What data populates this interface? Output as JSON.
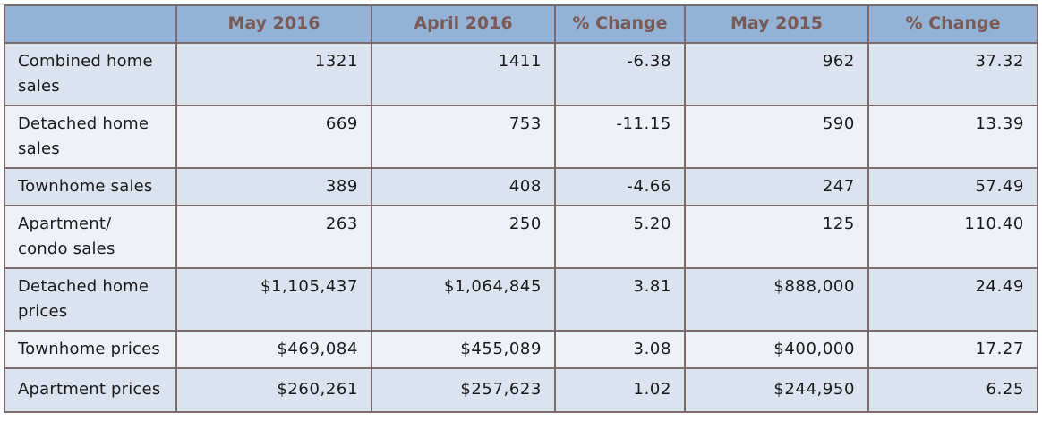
{
  "table": {
    "headers": [
      "",
      "May 2016",
      "April 2016",
      "% Change",
      "May 2015",
      "% Change"
    ],
    "rows": [
      {
        "label": "Combined home sales",
        "values": [
          "1321",
          "1411",
          "-6.38",
          "962",
          "37.32"
        ]
      },
      {
        "label": "Detached home sales",
        "values": [
          "669",
          "753",
          "-11.15",
          "590",
          "13.39"
        ]
      },
      {
        "label": "Townhome sales",
        "values": [
          "389",
          "408",
          "-4.66",
          "247",
          "57.49"
        ]
      },
      {
        "label": "Apartment/ condo sales",
        "values": [
          "263",
          "250",
          "5.20",
          "125",
          "110.40"
        ]
      },
      {
        "label": "Detached home prices",
        "values": [
          "$1,105,437",
          "$1,064,845",
          "3.81",
          "$888,000",
          "24.49"
        ]
      },
      {
        "label": "Townhome prices",
        "values": [
          "$469,084",
          "$455,089",
          "3.08",
          "$400,000",
          "17.27"
        ]
      },
      {
        "label": "Apartment prices",
        "values": [
          "$260,261",
          "$257,623",
          "1.02",
          "$244,950",
          "6.25"
        ]
      }
    ]
  },
  "colors": {
    "header_bg": "#93b3d6",
    "header_text": "#7b5a56",
    "row_odd": "#dbe3ee",
    "row_even": "#eef2f8",
    "border": "#7d6a6b"
  }
}
